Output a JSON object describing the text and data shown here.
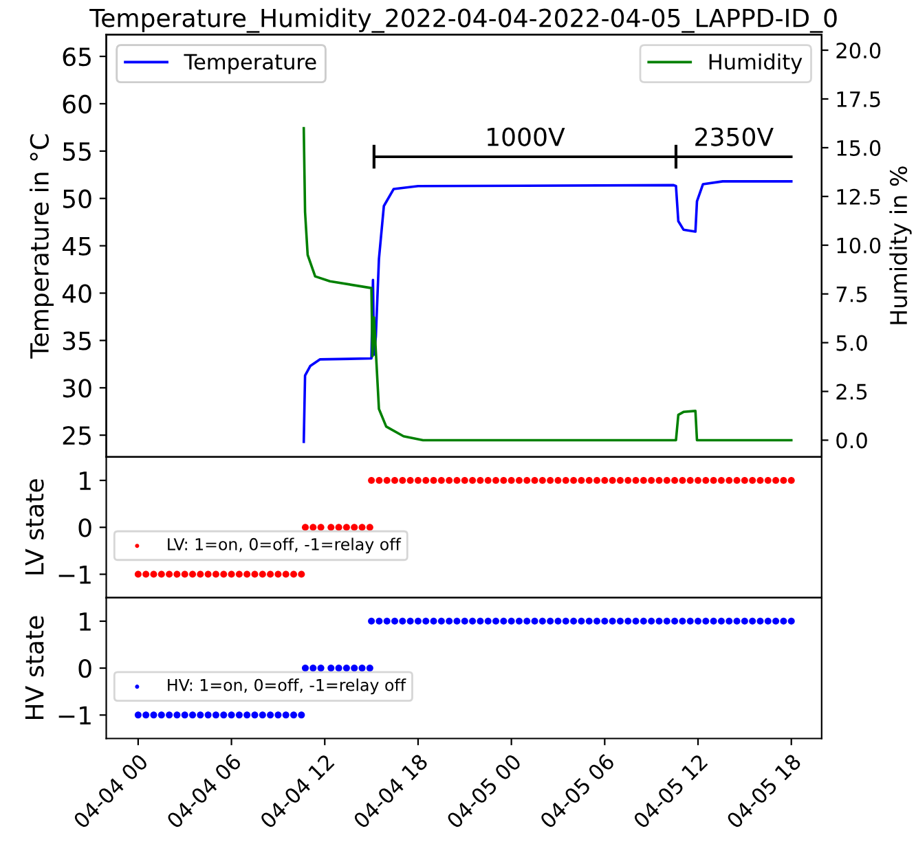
{
  "chart_data": [
    {
      "type": "line",
      "title": "Temperature_Humidity_2022-04-04-2022-04-05_LAPPD-ID_0",
      "ylabel": "Temperature in °C",
      "y2label": "Humidity in %",
      "xlim": [
        "2022-04-03T21:57",
        "2022-04-05T19:57"
      ],
      "ylim": [
        22.7,
        67.3
      ],
      "yticks": [
        25,
        30,
        35,
        40,
        45,
        50,
        55,
        60,
        65
      ],
      "y2lim": [
        -0.86,
        20.8
      ],
      "y2ticks": [
        {
          "value": 0,
          "label": "0.0"
        },
        {
          "value": 2.5,
          "label": "2.5"
        },
        {
          "value": 5,
          "label": "5.0"
        },
        {
          "value": 7.5,
          "label": "7.5"
        },
        {
          "value": 10,
          "label": "10.0"
        },
        {
          "value": 12.5,
          "label": "12.5"
        },
        {
          "value": 15,
          "label": "15.0"
        },
        {
          "value": 17.5,
          "label": "17.5"
        },
        {
          "value": 20,
          "label": "20.0"
        }
      ],
      "tick_labels": "y",
      "legend": "top",
      "grid": false,
      "annotations": [
        "1000V",
        "2350V"
      ],
      "series": [
        {
          "name": "Temperature",
          "color": "#0000ff",
          "axis": "y",
          "x": [
            "2022-04-04T10:39",
            "2022-04-04T10:44",
            "2022-04-04T11:04",
            "2022-04-04T11:41",
            "2022-04-04T15:00",
            "2022-04-04T15:06",
            "2022-04-04T15:10",
            "2022-04-04T15:17",
            "2022-04-04T15:29",
            "2022-04-04T15:48",
            "2022-04-04T16:26",
            "2022-04-04T18:00",
            "2022-04-05T10:26",
            "2022-04-05T10:35",
            "2022-04-05T10:44",
            "2022-04-05T11:04",
            "2022-04-05T11:50",
            "2022-04-05T11:56",
            "2022-04-05T12:19",
            "2022-04-05T13:35",
            "2022-04-05T18:00"
          ],
          "values": [
            24.3,
            31.3,
            32.3,
            33.0,
            33.1,
            41.4,
            33.5,
            35.4,
            43.6,
            49.2,
            51.0,
            51.3,
            51.4,
            51.3,
            47.6,
            46.7,
            46.5,
            49.7,
            51.5,
            51.8,
            51.8
          ]
        },
        {
          "name": "Humidity",
          "color": "#008000",
          "axis": "y2",
          "x": [
            "2022-04-04T10:39",
            "2022-04-04T10:44",
            "2022-04-04T10:54",
            "2022-04-04T11:23",
            "2022-04-04T12:20",
            "2022-04-04T15:00",
            "2022-04-04T15:04",
            "2022-04-04T15:10",
            "2022-04-04T15:29",
            "2022-04-04T15:57",
            "2022-04-04T17:04",
            "2022-04-04T18:19",
            "2022-04-05T10:35",
            "2022-04-05T10:44",
            "2022-04-05T11:04",
            "2022-04-05T11:50",
            "2022-04-05T11:56",
            "2022-04-05T18:00"
          ],
          "values": [
            16.0,
            11.7,
            9.5,
            8.4,
            8.15,
            7.8,
            4.3,
            6.3,
            1.6,
            0.7,
            0.2,
            0.0,
            0.0,
            1.3,
            1.45,
            1.5,
            0.0,
            0.0
          ]
        },
        {
          "color": "#000000",
          "axis": "y",
          "x": [
            "2022-04-04T15:10",
            "2022-04-05T10:35",
            "2022-04-05T18:00"
          ],
          "values": [
            54.4,
            54.4,
            54.4
          ],
          "errors": [
            1.1,
            1.1,
            null
          ]
        }
      ]
    },
    {
      "type": "scatter",
      "ylabel": "LV state",
      "xlim": [
        "2022-04-03T21:57",
        "2022-04-05T19:57"
      ],
      "ylim": [
        -1.5,
        1.5
      ],
      "yticks": [
        {
          "value": -1,
          "label": "−1"
        },
        0,
        1
      ],
      "tick_labels": "y",
      "legend": "left",
      "marker": "circle",
      "grid": false,
      "x": [
        "2022-04-04T00:00",
        "2022-04-04T00:30",
        "2022-04-04T01:00",
        "2022-04-04T01:30",
        "2022-04-04T02:00",
        "2022-04-04T02:30",
        "2022-04-04T03:00",
        "2022-04-04T03:30",
        "2022-04-04T04:00",
        "2022-04-04T04:30",
        "2022-04-04T05:00",
        "2022-04-04T05:30",
        "2022-04-04T06:00",
        "2022-04-04T06:30",
        "2022-04-04T07:00",
        "2022-04-04T07:30",
        "2022-04-04T08:00",
        "2022-04-04T08:30",
        "2022-04-04T09:00",
        "2022-04-04T09:30",
        "2022-04-04T10:00",
        "2022-04-04T10:30",
        "2022-04-04T10:45",
        "2022-04-04T11:15",
        "2022-04-04T11:45",
        "2022-04-04T12:24",
        "2022-04-04T12:54",
        "2022-04-04T13:24",
        "2022-04-04T13:54",
        "2022-04-04T14:24",
        "2022-04-04T14:54",
        "2022-04-04T15:00",
        "2022-04-04T15:30",
        "2022-04-04T16:00",
        "2022-04-04T16:30",
        "2022-04-04T17:00",
        "2022-04-04T17:30",
        "2022-04-04T18:00",
        "2022-04-04T18:30",
        "2022-04-04T19:00",
        "2022-04-04T19:30",
        "2022-04-04T20:00",
        "2022-04-04T20:30",
        "2022-04-04T21:00",
        "2022-04-04T21:30",
        "2022-04-04T22:00",
        "2022-04-04T22:30",
        "2022-04-04T23:00",
        "2022-04-04T23:30",
        "2022-04-05T00:00",
        "2022-04-05T00:30",
        "2022-04-05T01:00",
        "2022-04-05T01:30",
        "2022-04-05T02:00",
        "2022-04-05T02:30",
        "2022-04-05T03:00",
        "2022-04-05T03:30",
        "2022-04-05T04:00",
        "2022-04-05T04:30",
        "2022-04-05T05:00",
        "2022-04-05T05:30",
        "2022-04-05T06:00",
        "2022-04-05T06:30",
        "2022-04-05T07:00",
        "2022-04-05T07:30",
        "2022-04-05T08:00",
        "2022-04-05T08:30",
        "2022-04-05T09:00",
        "2022-04-05T09:30",
        "2022-04-05T10:00",
        "2022-04-05T10:30",
        "2022-04-05T11:00",
        "2022-04-05T11:30",
        "2022-04-05T12:00",
        "2022-04-05T12:30",
        "2022-04-05T13:00",
        "2022-04-05T13:30",
        "2022-04-05T14:00",
        "2022-04-05T14:30",
        "2022-04-05T15:00",
        "2022-04-05T15:30",
        "2022-04-05T16:00",
        "2022-04-05T16:30",
        "2022-04-05T17:00",
        "2022-04-05T17:30",
        "2022-04-05T18:00"
      ],
      "series": [
        {
          "name": "LV: 1=on, 0=off, -1=relay off",
          "color": "#ff0000",
          "values": [
            -1,
            -1,
            -1,
            -1,
            -1,
            -1,
            -1,
            -1,
            -1,
            -1,
            -1,
            -1,
            -1,
            -1,
            -1,
            -1,
            -1,
            -1,
            -1,
            -1,
            -1,
            -1,
            0,
            0,
            0,
            0,
            0,
            0,
            0,
            0,
            0,
            1,
            1,
            1,
            1,
            1,
            1,
            1,
            1,
            1,
            1,
            1,
            1,
            1,
            1,
            1,
            1,
            1,
            1,
            1,
            1,
            1,
            1,
            1,
            1,
            1,
            1,
            1,
            1,
            1,
            1,
            1,
            1,
            1,
            1,
            1,
            1,
            1,
            1,
            1,
            1,
            1,
            1,
            1,
            1,
            1,
            1,
            1,
            1,
            1,
            1,
            1,
            1,
            1,
            1,
            1
          ]
        }
      ]
    },
    {
      "type": "scatter",
      "ylabel": "HV state",
      "xlim": [
        "2022-04-03T21:57",
        "2022-04-05T19:57"
      ],
      "ylim": [
        -1.5,
        1.5
      ],
      "yticks": [
        {
          "value": -1,
          "label": "−1"
        },
        0,
        1
      ],
      "xticks": [
        {
          "value": "2022-04-04T00:00",
          "label": "04-04 00"
        },
        {
          "value": "2022-04-04T06:00",
          "label": "04-04 06"
        },
        {
          "value": "2022-04-04T12:00",
          "label": "04-04 12"
        },
        {
          "value": "2022-04-04T18:00",
          "label": "04-04 18"
        },
        {
          "value": "2022-04-05T00:00",
          "label": "04-05 00"
        },
        {
          "value": "2022-04-05T06:00",
          "label": "04-05 06"
        },
        {
          "value": "2022-04-05T12:00",
          "label": "04-05 12"
        },
        {
          "value": "2022-04-05T18:00",
          "label": "04-05 18"
        }
      ],
      "legend": "left",
      "marker": "circle",
      "grid": false,
      "x": [
        "2022-04-04T00:00",
        "2022-04-04T00:30",
        "2022-04-04T01:00",
        "2022-04-04T01:30",
        "2022-04-04T02:00",
        "2022-04-04T02:30",
        "2022-04-04T03:00",
        "2022-04-04T03:30",
        "2022-04-04T04:00",
        "2022-04-04T04:30",
        "2022-04-04T05:00",
        "2022-04-04T05:30",
        "2022-04-04T06:00",
        "2022-04-04T06:30",
        "2022-04-04T07:00",
        "2022-04-04T07:30",
        "2022-04-04T08:00",
        "2022-04-04T08:30",
        "2022-04-04T09:00",
        "2022-04-04T09:30",
        "2022-04-04T10:00",
        "2022-04-04T10:30",
        "2022-04-04T10:45",
        "2022-04-04T11:15",
        "2022-04-04T11:45",
        "2022-04-04T12:24",
        "2022-04-04T12:54",
        "2022-04-04T13:24",
        "2022-04-04T13:54",
        "2022-04-04T14:24",
        "2022-04-04T14:54",
        "2022-04-04T15:00",
        "2022-04-04T15:30",
        "2022-04-04T16:00",
        "2022-04-04T16:30",
        "2022-04-04T17:00",
        "2022-04-04T17:30",
        "2022-04-04T18:00",
        "2022-04-04T18:30",
        "2022-04-04T19:00",
        "2022-04-04T19:30",
        "2022-04-04T20:00",
        "2022-04-04T20:30",
        "2022-04-04T21:00",
        "2022-04-04T21:30",
        "2022-04-04T22:00",
        "2022-04-04T22:30",
        "2022-04-04T23:00",
        "2022-04-04T23:30",
        "2022-04-05T00:00",
        "2022-04-05T00:30",
        "2022-04-05T01:00",
        "2022-04-05T01:30",
        "2022-04-05T02:00",
        "2022-04-05T02:30",
        "2022-04-05T03:00",
        "2022-04-05T03:30",
        "2022-04-05T04:00",
        "2022-04-05T04:30",
        "2022-04-05T05:00",
        "2022-04-05T05:30",
        "2022-04-05T06:00",
        "2022-04-05T06:30",
        "2022-04-05T07:00",
        "2022-04-05T07:30",
        "2022-04-05T08:00",
        "2022-04-05T08:30",
        "2022-04-05T09:00",
        "2022-04-05T09:30",
        "2022-04-05T10:00",
        "2022-04-05T10:30",
        "2022-04-05T11:00",
        "2022-04-05T11:30",
        "2022-04-05T12:00",
        "2022-04-05T12:30",
        "2022-04-05T13:00",
        "2022-04-05T13:30",
        "2022-04-05T14:00",
        "2022-04-05T14:30",
        "2022-04-05T15:00",
        "2022-04-05T15:30",
        "2022-04-05T16:00",
        "2022-04-05T16:30",
        "2022-04-05T17:00",
        "2022-04-05T17:30",
        "2022-04-05T18:00"
      ],
      "series": [
        {
          "name": "HV: 1=on, 0=off, -1=relay off",
          "color": "#0000ff",
          "values": [
            -1,
            -1,
            -1,
            -1,
            -1,
            -1,
            -1,
            -1,
            -1,
            -1,
            -1,
            -1,
            -1,
            -1,
            -1,
            -1,
            -1,
            -1,
            -1,
            -1,
            -1,
            -1,
            0,
            0,
            0,
            0,
            0,
            0,
            0,
            0,
            0,
            1,
            1,
            1,
            1,
            1,
            1,
            1,
            1,
            1,
            1,
            1,
            1,
            1,
            1,
            1,
            1,
            1,
            1,
            1,
            1,
            1,
            1,
            1,
            1,
            1,
            1,
            1,
            1,
            1,
            1,
            1,
            1,
            1,
            1,
            1,
            1,
            1,
            1,
            1,
            1,
            1,
            1,
            1,
            1,
            1,
            1,
            1,
            1,
            1,
            1,
            1,
            1,
            1,
            1,
            1
          ]
        }
      ]
    }
  ]
}
